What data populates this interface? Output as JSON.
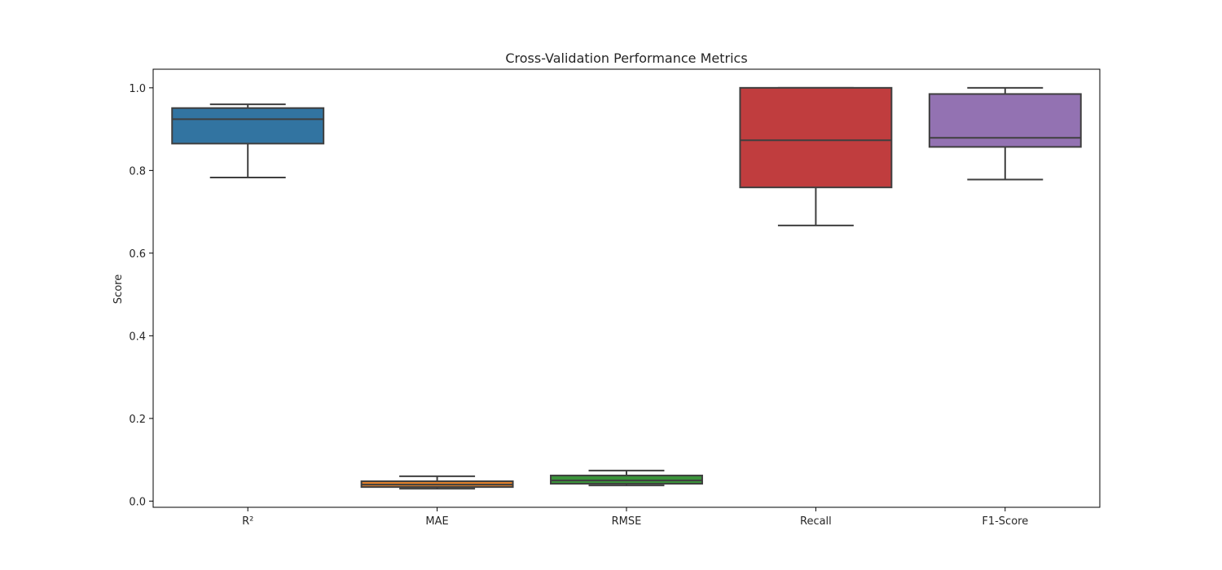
{
  "chart_data": {
    "type": "box",
    "title": "Cross-Validation Performance Metrics",
    "xlabel": "",
    "ylabel": "Score",
    "ylim": [
      -0.015,
      1.045
    ],
    "yticks": [
      0.0,
      0.2,
      0.4,
      0.6,
      0.8,
      1.0
    ],
    "ytick_labels": [
      "0.0",
      "0.2",
      "0.4",
      "0.6",
      "0.8",
      "1.0"
    ],
    "categories": [
      "R²",
      "MAE",
      "RMSE",
      "Recall",
      "F1-Score"
    ],
    "grid": false,
    "legend": "none",
    "series": [
      {
        "category": "R²",
        "color": "#3274a1",
        "whisker_low": 0.783,
        "q1": 0.865,
        "median": 0.924,
        "q3": 0.951,
        "whisker_high": 0.96
      },
      {
        "category": "MAE",
        "color": "#e1812c",
        "whisker_low": 0.03,
        "q1": 0.034,
        "median": 0.04,
        "q3": 0.048,
        "whisker_high": 0.06
      },
      {
        "category": "RMSE",
        "color": "#3a923a",
        "whisker_low": 0.038,
        "q1": 0.042,
        "median": 0.05,
        "q3": 0.062,
        "whisker_high": 0.074
      },
      {
        "category": "Recall",
        "color": "#c03d3e",
        "whisker_low": 0.667,
        "q1": 0.759,
        "median": 0.873,
        "q3": 1.0,
        "whisker_high": 1.0
      },
      {
        "category": "F1-Score",
        "color": "#9372b2",
        "whisker_low": 0.778,
        "q1": 0.857,
        "median": 0.879,
        "q3": 0.985,
        "whisker_high": 1.0
      }
    ]
  }
}
